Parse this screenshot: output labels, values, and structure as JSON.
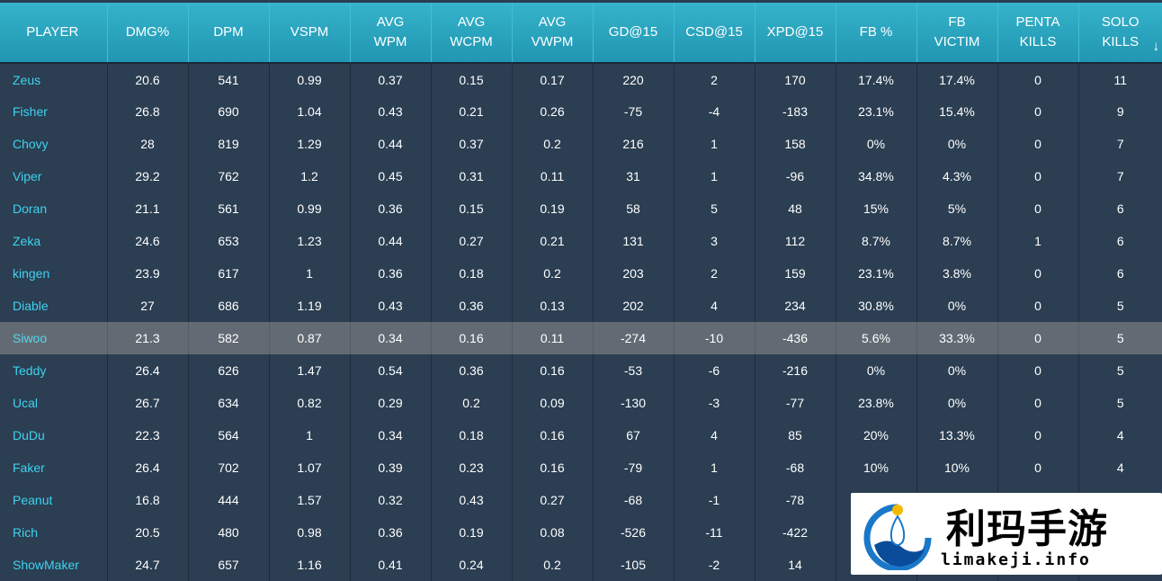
{
  "columns": [
    {
      "key": "player",
      "label": "PLAYER"
    },
    {
      "key": "dmg",
      "label": "DMG%"
    },
    {
      "key": "dpm",
      "label": "DPM"
    },
    {
      "key": "vspm",
      "label": "VSPM"
    },
    {
      "key": "wpm",
      "label": "AVG\nWPM"
    },
    {
      "key": "wcpm",
      "label": "AVG\nWCPM"
    },
    {
      "key": "vwpm",
      "label": "AVG\nVWPM"
    },
    {
      "key": "gd15",
      "label": "GD@15"
    },
    {
      "key": "csd15",
      "label": "CSD@15"
    },
    {
      "key": "xpd15",
      "label": "XPD@15"
    },
    {
      "key": "fb",
      "label": "FB %"
    },
    {
      "key": "fbv",
      "label": "FB\nVICTIM"
    },
    {
      "key": "penta",
      "label": "PENTA\nKILLS"
    },
    {
      "key": "solo",
      "label": "SOLO\nKILLS"
    }
  ],
  "sort_indicator": "↓",
  "highlighted_row": 8,
  "rows": [
    [
      "Zeus",
      "20.6",
      "541",
      "0.99",
      "0.37",
      "0.15",
      "0.17",
      "220",
      "2",
      "170",
      "17.4%",
      "17.4%",
      "0",
      "11"
    ],
    [
      "Fisher",
      "26.8",
      "690",
      "1.04",
      "0.43",
      "0.21",
      "0.26",
      "-75",
      "-4",
      "-183",
      "23.1%",
      "15.4%",
      "0",
      "9"
    ],
    [
      "Chovy",
      "28",
      "819",
      "1.29",
      "0.44",
      "0.37",
      "0.2",
      "216",
      "1",
      "158",
      "0%",
      "0%",
      "0",
      "7"
    ],
    [
      "Viper",
      "29.2",
      "762",
      "1.2",
      "0.45",
      "0.31",
      "0.11",
      "31",
      "1",
      "-96",
      "34.8%",
      "4.3%",
      "0",
      "7"
    ],
    [
      "Doran",
      "21.1",
      "561",
      "0.99",
      "0.36",
      "0.15",
      "0.19",
      "58",
      "5",
      "48",
      "15%",
      "5%",
      "0",
      "6"
    ],
    [
      "Zeka",
      "24.6",
      "653",
      "1.23",
      "0.44",
      "0.27",
      "0.21",
      "131",
      "3",
      "112",
      "8.7%",
      "8.7%",
      "1",
      "6"
    ],
    [
      "kingen",
      "23.9",
      "617",
      "1",
      "0.36",
      "0.18",
      "0.2",
      "203",
      "2",
      "159",
      "23.1%",
      "3.8%",
      "0",
      "6"
    ],
    [
      "Diable",
      "27",
      "686",
      "1.19",
      "0.43",
      "0.36",
      "0.13",
      "202",
      "4",
      "234",
      "30.8%",
      "0%",
      "0",
      "5"
    ],
    [
      "Siwoo",
      "21.3",
      "582",
      "0.87",
      "0.34",
      "0.16",
      "0.11",
      "-274",
      "-10",
      "-436",
      "5.6%",
      "33.3%",
      "0",
      "5"
    ],
    [
      "Teddy",
      "26.4",
      "626",
      "1.47",
      "0.54",
      "0.36",
      "0.16",
      "-53",
      "-6",
      "-216",
      "0%",
      "0%",
      "0",
      "5"
    ],
    [
      "Ucal",
      "26.7",
      "634",
      "0.82",
      "0.29",
      "0.2",
      "0.09",
      "-130",
      "-3",
      "-77",
      "23.8%",
      "0%",
      "0",
      "5"
    ],
    [
      "DuDu",
      "22.3",
      "564",
      "1",
      "0.34",
      "0.18",
      "0.16",
      "67",
      "4",
      "85",
      "20%",
      "13.3%",
      "0",
      "4"
    ],
    [
      "Faker",
      "26.4",
      "702",
      "1.07",
      "0.39",
      "0.23",
      "0.16",
      "-79",
      "1",
      "-68",
      "10%",
      "10%",
      "0",
      "4"
    ],
    [
      "Peanut",
      "16.8",
      "444",
      "1.57",
      "0.32",
      "0.43",
      "0.27",
      "-68",
      "-1",
      "-78",
      "",
      "",
      "",
      ""
    ],
    [
      "Rich",
      "20.5",
      "480",
      "0.98",
      "0.36",
      "0.19",
      "0.08",
      "-526",
      "-11",
      "-422",
      "",
      "",
      "",
      ""
    ],
    [
      "ShowMaker",
      "24.7",
      "657",
      "1.16",
      "0.41",
      "0.24",
      "0.2",
      "-105",
      "-2",
      "14",
      "",
      "",
      "",
      ""
    ]
  ],
  "watermark": {
    "cn_text": "利玛手游",
    "en_text": "limakeji.info",
    "logo_icon": "water-drop-logo-icon",
    "colors": {
      "ring": "#1a78c8",
      "drop": "#f5b800",
      "wave": "#0a4c9a"
    }
  }
}
